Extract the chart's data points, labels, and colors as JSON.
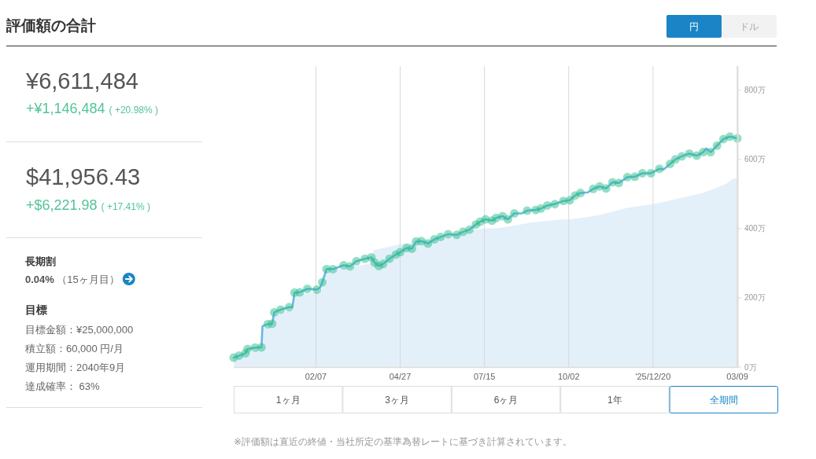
{
  "chart_data": [
    {
      "type": "other",
      "title": "評価額の合計",
      "annotations": [
        "¥6,611,484",
        "+¥1,146,484",
        "( +20.98% )",
        "$41,956.43",
        "+$6,221.98",
        "( +17.41% )",
        "長期割",
        "0.04%",
        "（15ヶ月目）",
        "目標",
        "目標金額：¥25,000,000",
        "積立額：60,000 円/月",
        "運用期間：2040年9月",
        "達成確率： 63%"
      ]
    },
    {
      "type": "line",
      "series": [
        {
          "type": "area",
          "color": "#e3f0f9",
          "x": [
            "2024-11-22",
            "2024-12-18",
            "2024-12-19",
            "2024-12-29",
            "2024-12-30",
            "2025-01-17",
            "2025-01-18",
            "2025-02-12",
            "2025-02-16",
            "2025-03-31",
            "2025-04-02",
            "2025-04-27",
            "2025-05-23",
            "2025-06-14",
            "2025-07-06",
            "2025-07-17",
            "2025-07-26",
            "2025-08-06",
            "2025-08-17",
            "2025-08-28",
            "2025-09-10",
            "2025-09-23",
            "2025-10-03",
            "2025-10-17",
            "2025-10-30",
            "2025-11-11",
            "2025-11-23",
            "2025-12-06",
            "2025-12-20",
            "2025-12-30",
            "2026-01-11",
            "2026-01-23",
            "2026-02-05",
            "2026-02-17",
            "2026-02-27",
            "2026-03-04",
            "2026-03-09"
          ],
          "values": [
            25,
            52,
            112,
            118,
            152,
            165,
            208,
            218,
            275,
            300,
            338,
            355,
            366,
            378,
            397,
            401,
            401,
            406,
            412,
            418,
            422,
            426,
            427,
            432,
            439,
            448,
            458,
            465,
            471,
            477,
            486,
            494,
            503,
            518,
            530,
            543,
            547
          ]
        },
        {
          "type": "line",
          "color": "#6ab6e6",
          "x": [
            "2024-11-22",
            "2024-11-27",
            "2024-12-03",
            "2024-12-05",
            "2024-12-12",
            "2024-12-18",
            "2024-12-19",
            "2024-12-24",
            "2024-12-28",
            "2024-12-30",
            "2025-01-05",
            "2025-01-13",
            "2025-01-16",
            "2025-01-18",
            "2025-01-23",
            "2025-01-30",
            "2025-02-08",
            "2025-02-11",
            "2025-02-13",
            "2025-02-17",
            "2025-02-23",
            "2025-03-05",
            "2025-03-11",
            "2025-03-17",
            "2025-03-25",
            "2025-03-31",
            "2025-04-03",
            "2025-04-07",
            "2025-04-11",
            "2025-04-17",
            "2025-04-23",
            "2025-04-27",
            "2025-05-03",
            "2025-05-08",
            "2025-05-12",
            "2025-05-17",
            "2025-05-23",
            "2025-05-29",
            "2025-06-04",
            "2025-06-11",
            "2025-06-19",
            "2025-06-25",
            "2025-07-01",
            "2025-07-07",
            "2025-07-11",
            "2025-07-16",
            "2025-07-22",
            "2025-07-26",
            "2025-08-01",
            "2025-08-06",
            "2025-08-12",
            "2025-08-19",
            "2025-08-24",
            "2025-09-01",
            "2025-09-06",
            "2025-09-12",
            "2025-09-19",
            "2025-09-27",
            "2025-10-03",
            "2025-10-08",
            "2025-10-13",
            "2025-10-20",
            "2025-10-25",
            "2025-10-31",
            "2025-11-06",
            "2025-11-12",
            "2025-11-18",
            "2025-11-26",
            "2025-12-03",
            "2025-12-10",
            "2025-12-18",
            "2025-12-26",
            "2025-12-30",
            "2026-01-05",
            "2026-01-10",
            "2026-01-16",
            "2026-01-23",
            "2026-01-30",
            "2026-02-05",
            "2026-02-08",
            "2026-02-12",
            "2026-02-18",
            "2026-02-24",
            "2026-03-02",
            "2026-03-09"
          ],
          "values": [
            27,
            33,
            40,
            52,
            56,
            57,
            118,
            124,
            125,
            158,
            166,
            173,
            173,
            215,
            216,
            226,
            224,
            230,
            245,
            283,
            283,
            294,
            291,
            306,
            313,
            317,
            302,
            292,
            298,
            313,
            325,
            332,
            344,
            342,
            363,
            364,
            357,
            369,
            376,
            384,
            382,
            391,
            397,
            412,
            420,
            427,
            423,
            431,
            436,
            427,
            444,
            444,
            452,
            454,
            458,
            467,
            471,
            480,
            482,
            496,
            503,
            505,
            515,
            522,
            516,
            534,
            532,
            549,
            550,
            560,
            560,
            573,
            571,
            587,
            600,
            609,
            617,
            611,
            621,
            632,
            621,
            640,
            659,
            666,
            661
          ]
        },
        {
          "type": "scatter",
          "color": "#2dbd8a",
          "marker": "circle",
          "x": [
            "2024-11-22",
            "2024-11-27",
            "2024-12-03",
            "2024-12-05",
            "2024-12-12",
            "2024-12-18",
            "2024-12-24",
            "2024-12-28",
            "2024-12-30",
            "2025-01-05",
            "2025-01-13",
            "2025-01-18",
            "2025-01-23",
            "2025-01-30",
            "2025-02-08",
            "2025-02-13",
            "2025-02-17",
            "2025-02-23",
            "2025-03-05",
            "2025-03-11",
            "2025-03-17",
            "2025-03-25",
            "2025-03-31",
            "2025-04-03",
            "2025-04-07",
            "2025-04-11",
            "2025-04-17",
            "2025-04-23",
            "2025-04-27",
            "2025-05-03",
            "2025-05-08",
            "2025-05-12",
            "2025-05-17",
            "2025-05-23",
            "2025-05-29",
            "2025-06-04",
            "2025-06-11",
            "2025-06-19",
            "2025-06-25",
            "2025-07-01",
            "2025-07-07",
            "2025-07-11",
            "2025-07-16",
            "2025-07-22",
            "2025-07-26",
            "2025-08-01",
            "2025-08-06",
            "2025-08-12",
            "2025-08-24",
            "2025-09-01",
            "2025-09-06",
            "2025-09-12",
            "2025-09-19",
            "2025-09-27",
            "2025-10-03",
            "2025-10-08",
            "2025-10-13",
            "2025-10-25",
            "2025-10-31",
            "2025-11-06",
            "2025-11-12",
            "2025-11-18",
            "2025-11-26",
            "2025-12-03",
            "2025-12-10",
            "2025-12-18",
            "2025-12-26",
            "2026-01-05",
            "2026-01-10",
            "2026-01-16",
            "2026-01-23",
            "2026-01-30",
            "2026-02-05",
            "2026-02-12",
            "2026-02-18",
            "2026-02-24",
            "2026-03-02",
            "2026-03-09"
          ],
          "values": [
            27,
            33,
            40,
            52,
            56,
            57,
            124,
            125,
            158,
            166,
            173,
            215,
            216,
            226,
            224,
            245,
            283,
            283,
            294,
            291,
            306,
            313,
            317,
            302,
            292,
            298,
            313,
            325,
            332,
            344,
            342,
            363,
            364,
            357,
            369,
            376,
            384,
            382,
            391,
            397,
            412,
            420,
            427,
            423,
            431,
            436,
            427,
            444,
            452,
            454,
            458,
            467,
            471,
            480,
            482,
            496,
            503,
            515,
            522,
            516,
            534,
            532,
            549,
            550,
            560,
            560,
            573,
            587,
            600,
            609,
            617,
            611,
            621,
            621,
            640,
            659,
            666,
            661
          ]
        }
      ],
      "xlim": [
        "2024-11-22",
        "2026-03-09"
      ],
      "xticks": [
        {
          "value": "2025-02-07",
          "label": "02/07"
        },
        {
          "value": "2025-04-27",
          "label": "04/27"
        },
        {
          "value": "2025-07-15",
          "label": "07/15"
        },
        {
          "value": "2025-10-02",
          "label": "10/02"
        },
        {
          "value": "2025-12-20",
          "label": "'25/12/20"
        },
        {
          "value": "2026-03-09",
          "label": "03/09"
        }
      ],
      "ylim": [
        0,
        870
      ],
      "yticks": [
        {
          "value": 0,
          "label": "0万"
        },
        {
          "value": 200,
          "label": "200万"
        },
        {
          "value": 400,
          "label": "400万"
        },
        {
          "value": 600,
          "label": "600万"
        },
        {
          "value": 800,
          "label": "800万"
        }
      ],
      "grid": "x",
      "annotations": [
        "円",
        "ドル",
        "1ヶ月",
        "3ヶ月",
        "6ヶ月",
        "1年",
        "全期間",
        "※評価額は直近の終値・当社所定の基準為替レートに基づき計算されています。"
      ]
    }
  ]
}
